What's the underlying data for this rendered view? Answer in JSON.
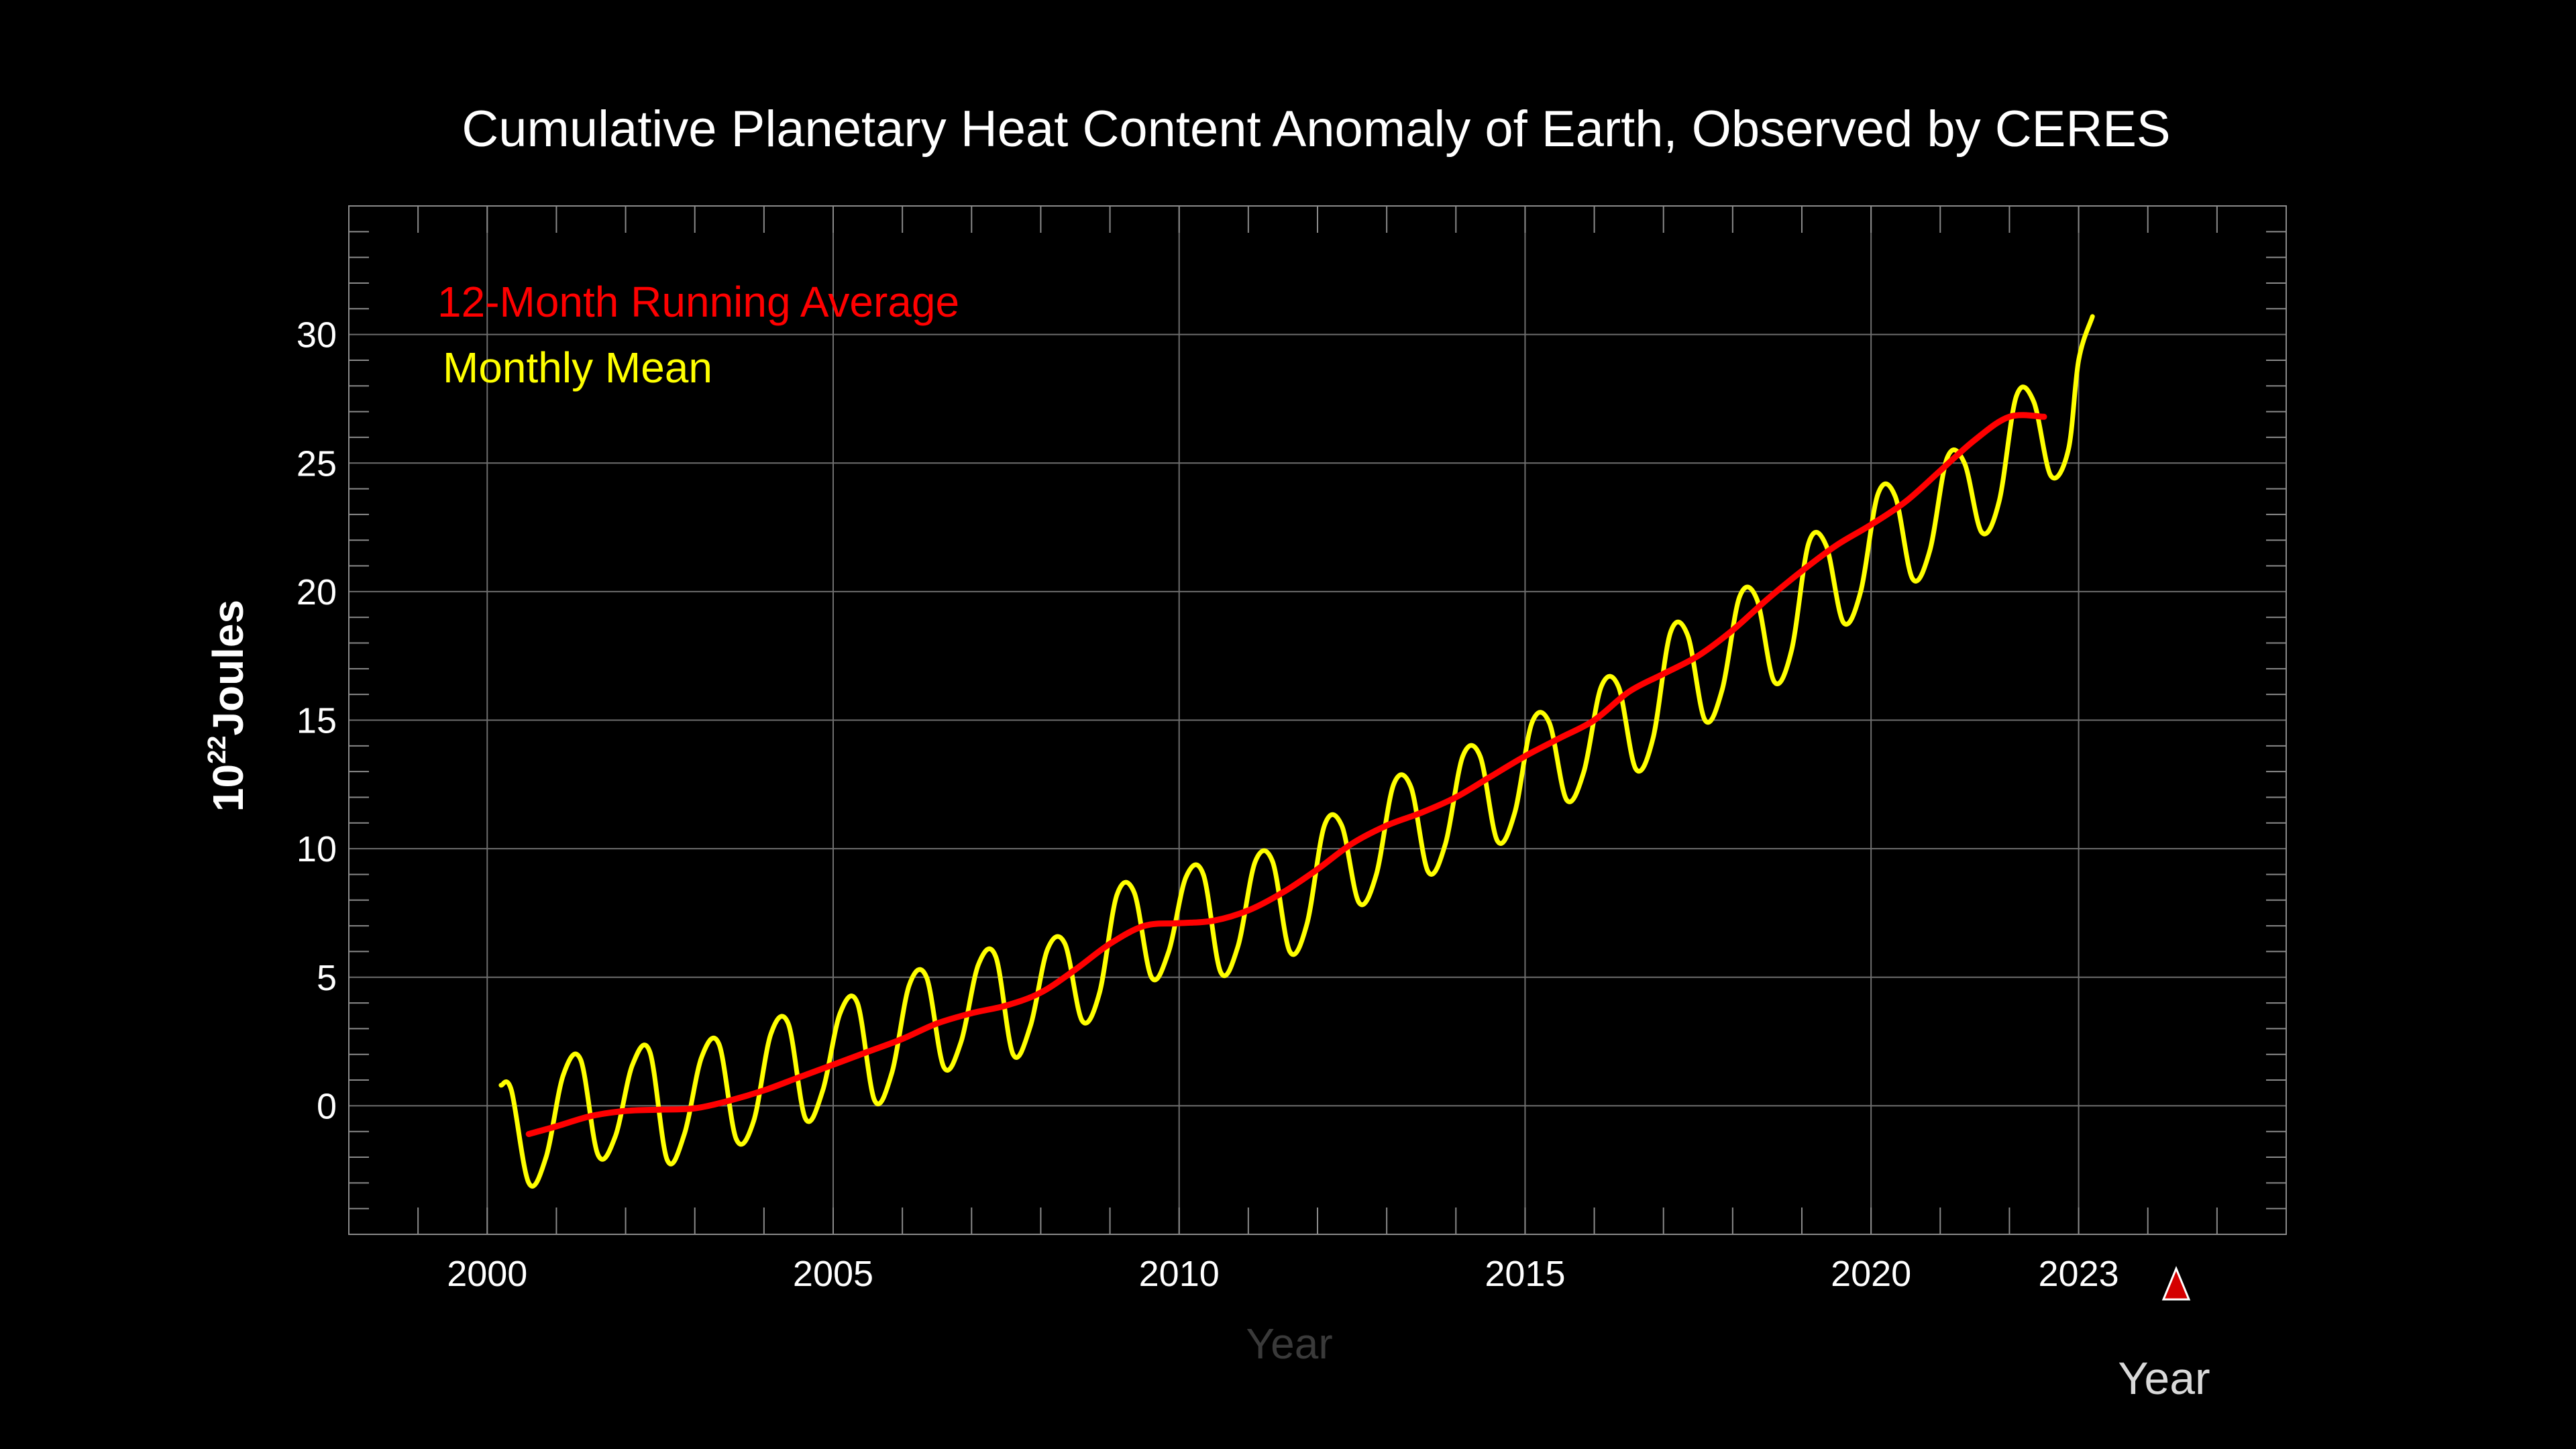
{
  "chart_data": {
    "type": "line",
    "title": "Cumulative Planetary Heat Content Anomaly of Earth, Observed by CERES",
    "ylabel": {
      "base": "10",
      "exponent": "22",
      "unit": "Joules"
    },
    "xlabel": "Year",
    "xlim": [
      1998,
      2026
    ],
    "ylim": [
      -5,
      35
    ],
    "x_ticks": [
      2000,
      2005,
      2010,
      2015,
      2020,
      2023
    ],
    "x_tick_labels": [
      "2000",
      "2005",
      "2010",
      "2015",
      "2020",
      "2023"
    ],
    "y_ticks": [
      0,
      5,
      10,
      15,
      20,
      25,
      30
    ],
    "y_tick_labels": [
      "0",
      "5",
      "10",
      "15",
      "20",
      "25",
      "30"
    ],
    "grid": true,
    "legend_position": "top-left",
    "marker": {
      "x": 2023,
      "label": "Year",
      "color": "#d40000"
    },
    "series": [
      {
        "name": "12-Month Running Average",
        "color": "#ff0000",
        "x": [
          2000.6,
          2001.0,
          2001.5,
          2002.0,
          2002.5,
          2003.0,
          2003.5,
          2004.0,
          2004.5,
          2005.0,
          2005.5,
          2006.0,
          2006.5,
          2007.0,
          2007.5,
          2008.0,
          2008.5,
          2009.0,
          2009.5,
          2010.0,
          2010.5,
          2011.0,
          2011.5,
          2012.0,
          2012.5,
          2013.0,
          2013.5,
          2014.0,
          2014.5,
          2015.0,
          2015.5,
          2016.0,
          2016.5,
          2017.0,
          2017.5,
          2018.0,
          2018.5,
          2019.0,
          2019.5,
          2020.0,
          2020.5,
          2021.0,
          2021.5,
          2022.0,
          2022.5
        ],
        "y": [
          -1.1,
          -0.8,
          -0.4,
          -0.2,
          -0.15,
          -0.1,
          0.2,
          0.6,
          1.1,
          1.6,
          2.1,
          2.6,
          3.2,
          3.6,
          3.9,
          4.4,
          5.3,
          6.3,
          7.0,
          7.1,
          7.2,
          7.6,
          8.3,
          9.2,
          10.2,
          10.9,
          11.4,
          12.0,
          12.8,
          13.6,
          14.3,
          15.0,
          16.1,
          16.8,
          17.5,
          18.5,
          19.7,
          20.8,
          21.8,
          22.6,
          23.5,
          24.7,
          25.9,
          26.8,
          26.8
        ]
      },
      {
        "name": "Monthly Mean",
        "color": "#ffff00",
        "x": [
          2000.2,
          2000.35,
          2000.6,
          2000.85,
          2001.1,
          2001.35,
          2001.6,
          2001.85,
          2002.1,
          2002.35,
          2002.6,
          2002.85,
          2003.1,
          2003.35,
          2003.6,
          2003.85,
          2004.1,
          2004.35,
          2004.6,
          2004.85,
          2005.1,
          2005.35,
          2005.6,
          2005.85,
          2006.1,
          2006.35,
          2006.6,
          2006.85,
          2007.1,
          2007.35,
          2007.6,
          2007.85,
          2008.1,
          2008.35,
          2008.6,
          2008.85,
          2009.1,
          2009.35,
          2009.6,
          2009.85,
          2010.1,
          2010.35,
          2010.6,
          2010.85,
          2011.1,
          2011.35,
          2011.6,
          2011.85,
          2012.1,
          2012.35,
          2012.6,
          2012.85,
          2013.1,
          2013.35,
          2013.6,
          2013.85,
          2014.1,
          2014.35,
          2014.6,
          2014.85,
          2015.1,
          2015.35,
          2015.6,
          2015.85,
          2016.1,
          2016.35,
          2016.6,
          2016.85,
          2017.1,
          2017.35,
          2017.6,
          2017.85,
          2018.1,
          2018.35,
          2018.6,
          2018.85,
          2019.1,
          2019.35,
          2019.6,
          2019.85,
          2020.1,
          2020.35,
          2020.6,
          2020.85,
          2021.1,
          2021.35,
          2021.6,
          2021.85,
          2022.1,
          2022.35,
          2022.6,
          2022.85,
          2023.0,
          2023.2
        ],
        "y": [
          0.8,
          0.6,
          -3.0,
          -2.0,
          1.2,
          1.8,
          -1.9,
          -1.2,
          1.6,
          2.1,
          -2.1,
          -1.1,
          1.9,
          2.4,
          -1.3,
          -0.6,
          2.8,
          3.2,
          -0.5,
          0.6,
          3.6,
          4.0,
          0.2,
          1.3,
          4.7,
          5.0,
          1.5,
          2.5,
          5.5,
          5.8,
          2.0,
          3.1,
          6.1,
          6.3,
          3.3,
          4.4,
          8.2,
          8.3,
          5.0,
          6.0,
          8.9,
          9.0,
          5.2,
          6.2,
          9.5,
          9.5,
          6.0,
          7.1,
          10.9,
          10.9,
          7.9,
          9.0,
          12.5,
          12.4,
          9.1,
          10.2,
          13.6,
          13.6,
          10.3,
          11.4,
          14.9,
          14.9,
          11.9,
          13.0,
          16.3,
          16.3,
          13.1,
          14.3,
          18.4,
          18.3,
          15.0,
          16.2,
          19.8,
          19.7,
          16.5,
          17.7,
          21.9,
          21.8,
          18.8,
          20.0,
          23.8,
          23.7,
          20.5,
          21.6,
          25.2,
          25.0,
          22.3,
          23.5,
          27.6,
          27.4,
          24.5,
          25.5,
          29.0,
          30.7
        ]
      }
    ]
  }
}
